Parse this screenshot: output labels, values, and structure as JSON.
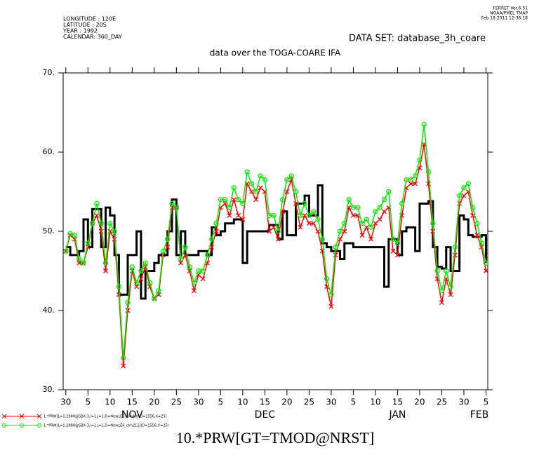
{
  "chart_data": {
    "type": "line",
    "title": "data over the TOGA-COARE IFA",
    "dataset": "DATA SET: database_3h_coare",
    "xlabel": "10.*PRW[GT=TMOD@NRST]",
    "header_left": [
      "LONGITUDE : 120E",
      "LATITUDE : 20S",
      "YEAR : 1992",
      "CALENDAR: 360_DAY"
    ],
    "header_right": [
      "FERRET  Ver.6.51",
      "NOAA/PMEL TMAP",
      "Feb 18 2011 12:36:18"
    ],
    "xlim": [
      -0.6,
      95.4
    ],
    "ylim": [
      30,
      70
    ],
    "yticks": [
      {
        "value": 30,
        "label": "30."
      },
      {
        "value": 40,
        "label": "40."
      },
      {
        "value": 50,
        "label": "50."
      },
      {
        "value": 60,
        "label": "60."
      },
      {
        "value": 70,
        "label": "70."
      }
    ],
    "xticks": [
      {
        "value": 0,
        "label": "30"
      },
      {
        "value": 5,
        "label": "5"
      },
      {
        "value": 10,
        "label": "10"
      },
      {
        "value": 15,
        "label": "15"
      },
      {
        "value": 20,
        "label": "20"
      },
      {
        "value": 25,
        "label": "25"
      },
      {
        "value": 30,
        "label": "30"
      },
      {
        "value": 35,
        "label": "5"
      },
      {
        "value": 40,
        "label": "10"
      },
      {
        "value": 45,
        "label": "15"
      },
      {
        "value": 50,
        "label": "20"
      },
      {
        "value": 55,
        "label": "25"
      },
      {
        "value": 60,
        "label": "30"
      },
      {
        "value": 65,
        "label": "5"
      },
      {
        "value": 70,
        "label": "10"
      },
      {
        "value": 75,
        "label": "15"
      },
      {
        "value": 80,
        "label": "20"
      },
      {
        "value": 85,
        "label": "25"
      },
      {
        "value": 90,
        "label": "30"
      },
      {
        "value": 95,
        "label": "5"
      }
    ],
    "months": [
      {
        "value": 15,
        "label": "NOV"
      },
      {
        "value": 45,
        "label": "DEC"
      },
      {
        "value": 75,
        "label": "JAN"
      },
      {
        "value": 93.5,
        "label": "FEB"
      }
    ],
    "x": [
      0,
      1,
      2,
      3,
      4,
      5,
      6,
      7,
      8,
      9,
      10,
      11,
      12,
      13,
      14,
      15,
      16,
      17,
      18,
      19,
      20,
      21,
      22,
      23,
      24,
      25,
      26,
      27,
      28,
      29,
      30,
      31,
      32,
      33,
      34,
      35,
      36,
      37,
      38,
      39,
      40,
      41,
      42,
      43,
      44,
      45,
      46,
      47,
      48,
      49,
      50,
      51,
      52,
      53,
      54,
      55,
      56,
      57,
      58,
      59,
      60,
      61,
      62,
      63,
      64,
      65,
      66,
      67,
      68,
      69,
      70,
      71,
      72,
      73,
      74,
      75,
      76,
      77,
      78,
      79,
      80,
      81,
      82,
      83,
      84,
      85,
      86,
      87,
      88,
      89,
      90,
      91,
      92,
      93,
      94,
      95
    ],
    "series": [
      {
        "color": "#000000",
        "step": true,
        "marker": "none",
        "values": [
          48,
          47,
          47,
          47.5,
          51.5,
          48,
          52.8,
          52.8,
          48,
          53,
          52,
          47,
          42,
          42,
          47,
          47,
          50,
          41.5,
          45,
          45,
          46,
          47,
          47,
          50,
          54,
          47,
          50,
          47,
          47,
          47,
          47.5,
          47.5,
          47,
          50.5,
          49.5,
          50,
          51,
          51,
          51.5,
          51.5,
          46,
          50,
          50,
          50,
          50,
          50,
          50.8,
          50.8,
          49,
          52.5,
          49.5,
          49.5,
          53.5,
          53.5,
          54.5,
          52,
          52,
          55.8,
          48.5,
          48,
          47.5,
          47.5,
          46.5,
          48.5,
          48.5,
          48,
          48,
          48,
          48,
          48,
          48,
          48,
          43,
          49,
          49,
          47,
          50,
          50.5,
          50.5,
          47.5,
          53.5,
          53.5,
          53.8,
          48,
          45.5,
          45.3,
          48,
          45,
          45,
          52,
          51.5,
          49.5,
          49.3,
          49.3,
          49.5,
          46
        ]
      },
      {
        "name": "1.*PRW[L=1:2880@SBX:3,I=1,J=1,D=NewLE6_clm10](D=1556,X=25)",
        "color": "#ff0000",
        "marker": "x",
        "values": [
          47.5,
          49.5,
          49,
          46,
          46,
          48,
          51,
          52,
          50,
          45,
          50,
          49,
          42,
          33,
          40,
          45,
          43,
          44,
          45.5,
          43,
          41.5,
          42,
          47,
          48,
          53,
          53,
          46,
          47,
          45,
          42.5,
          44.5,
          44,
          46,
          48,
          50,
          53,
          53.5,
          52,
          54,
          52,
          51.5,
          56,
          55,
          54,
          55.5,
          55,
          50,
          50.5,
          49,
          52.5,
          55,
          56.5,
          53.5,
          50.5,
          52,
          51,
          51,
          50,
          47.5,
          43,
          40.5,
          47,
          49,
          50,
          53,
          52,
          52,
          49.5,
          50.5,
          49,
          51,
          51.5,
          52.5,
          53,
          47.5,
          47,
          52,
          55.5,
          56,
          56,
          58,
          61,
          56,
          50,
          44,
          41,
          44,
          42,
          47,
          53.5,
          54.5,
          55,
          52,
          49.5,
          48,
          45
        ]
      },
      {
        "name": "1.*PRW[L=1:2880@SBX:3,I=1,J=1,D=NewLE6_clm211](D=1556,X=25)",
        "color": "#00ee00",
        "marker": "o",
        "values": [
          47.5,
          49.7,
          49.5,
          46.5,
          46,
          48.5,
          51,
          53.5,
          51,
          46,
          51,
          50,
          43,
          34,
          41,
          45.5,
          43.5,
          45,
          46,
          43.5,
          41.5,
          42.5,
          47.5,
          49,
          53.5,
          53,
          46.5,
          48,
          45.5,
          43.5,
          45,
          45,
          47,
          49,
          51,
          54,
          54,
          53,
          55.5,
          54,
          53.5,
          57.5,
          56,
          55,
          57,
          56.5,
          52,
          52,
          50,
          54,
          56.5,
          57,
          55,
          52,
          53.5,
          52,
          52.5,
          51.5,
          49,
          44,
          42,
          48,
          50,
          51,
          54,
          53,
          53,
          51,
          51.5,
          50.5,
          52.5,
          53,
          54,
          55,
          49,
          48.5,
          53.5,
          56.5,
          56.5,
          57,
          59,
          63.5,
          57.5,
          51,
          45,
          42.5,
          45,
          43,
          48,
          54.5,
          55.5,
          56,
          53,
          51,
          48.5,
          46
        ]
      }
    ]
  }
}
